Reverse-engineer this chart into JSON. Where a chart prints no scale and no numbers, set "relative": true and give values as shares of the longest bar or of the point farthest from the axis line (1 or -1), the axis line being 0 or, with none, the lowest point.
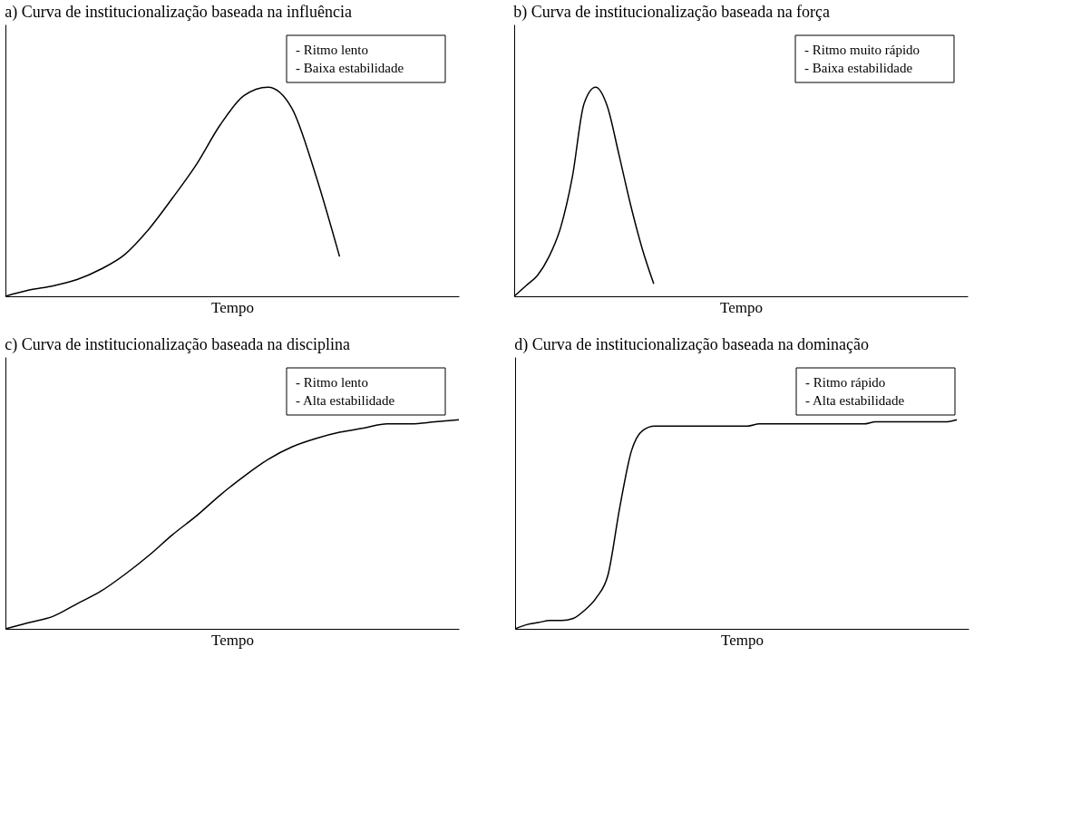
{
  "chart_data": [
    {
      "type": "line",
      "title": "a) Curva de institucionalização baseada na influência",
      "xlabel": "Tempo",
      "relative": true,
      "tick_labels": false,
      "annotations": [
        "- Ritmo lento",
        "- Baixa estabilidade"
      ],
      "categories": [
        null,
        null,
        null,
        null,
        null,
        null,
        null,
        null,
        null,
        null,
        null,
        null,
        null,
        null,
        null,
        null,
        null,
        null,
        null,
        null
      ],
      "series": [
        {
          "color": "#000000",
          "values": [
            0,
            0.03,
            0.05,
            0.08,
            0.13,
            0.2,
            0.32,
            0.47,
            0.63,
            0.82,
            0.96,
            1,
            0.9,
            0.58,
            0.19,
            null,
            null,
            null,
            null,
            null
          ]
        }
      ]
    },
    {
      "type": "line",
      "title": "b) Curva de institucionalização baseada na força",
      "xlabel": "Tempo",
      "relative": true,
      "tick_labels": false,
      "annotations": [
        "- Ritmo muito rápido",
        "- Baixa estabilidade"
      ],
      "categories": [
        null,
        null,
        null,
        null,
        null,
        null,
        null,
        null,
        null,
        null,
        null,
        null,
        null,
        null,
        null,
        null,
        null,
        null,
        null,
        null,
        null,
        null,
        null,
        null,
        null,
        null,
        null,
        null,
        null,
        null,
        null,
        null,
        null,
        null,
        null,
        null,
        null,
        null,
        null,
        null
      ],
      "series": [
        {
          "color": "#000000",
          "values": [
            0,
            0.05,
            0.1,
            0.19,
            0.33,
            0.57,
            0.92,
            1,
            0.91,
            0.68,
            0.44,
            0.23,
            0.06,
            null,
            null,
            null,
            null,
            null,
            null,
            null,
            null,
            null,
            null,
            null,
            null,
            null,
            null,
            null,
            null,
            null,
            null,
            null,
            null,
            null,
            null,
            null,
            null,
            null,
            null,
            null
          ]
        }
      ]
    },
    {
      "type": "line",
      "title": "c) Curva de institucionalização baseada na disciplina",
      "xlabel": "Tempo",
      "relative": true,
      "tick_labels": false,
      "annotations": [
        "- Ritmo lento",
        "- Alta estabilidade"
      ],
      "categories": [
        null,
        null,
        null,
        null,
        null,
        null,
        null,
        null,
        null,
        null,
        null,
        null,
        null,
        null,
        null,
        null,
        null,
        null,
        null,
        null
      ],
      "series": [
        {
          "color": "#000000",
          "values": [
            0,
            0.03,
            0.06,
            0.12,
            0.18,
            0.26,
            0.35,
            0.45,
            0.54,
            0.64,
            0.73,
            0.81,
            0.87,
            0.91,
            0.94,
            0.96,
            0.98,
            0.98,
            0.99,
            1
          ]
        }
      ]
    },
    {
      "type": "line",
      "title": "d) Curva de institucionalização baseada na dominação",
      "xlabel": "Tempo",
      "relative": true,
      "tick_labels": false,
      "annotations": [
        "- Ritmo rápido",
        "- Alta estabilidade"
      ],
      "categories": [
        null,
        null,
        null,
        null,
        null,
        null,
        null,
        null,
        null,
        null,
        null,
        null,
        null,
        null,
        null,
        null,
        null,
        null,
        null,
        null,
        null,
        null,
        null,
        null,
        null,
        null,
        null,
        null,
        null,
        null,
        null,
        null,
        null,
        null,
        null,
        null,
        null,
        null,
        null,
        null
      ],
      "series": [
        {
          "color": "#000000",
          "values": [
            0,
            0.02,
            0.03,
            0.04,
            0.04,
            0.05,
            0.09,
            0.15,
            0.26,
            0.58,
            0.85,
            0.95,
            0.97,
            0.97,
            0.97,
            0.97,
            0.97,
            0.97,
            0.97,
            0.97,
            0.97,
            0.98,
            0.98,
            0.98,
            0.98,
            0.98,
            0.98,
            0.98,
            0.98,
            0.98,
            0.98,
            0.99,
            0.99,
            0.99,
            0.99,
            0.99,
            0.99,
            0.99,
            1,
            null
          ]
        }
      ]
    }
  ]
}
